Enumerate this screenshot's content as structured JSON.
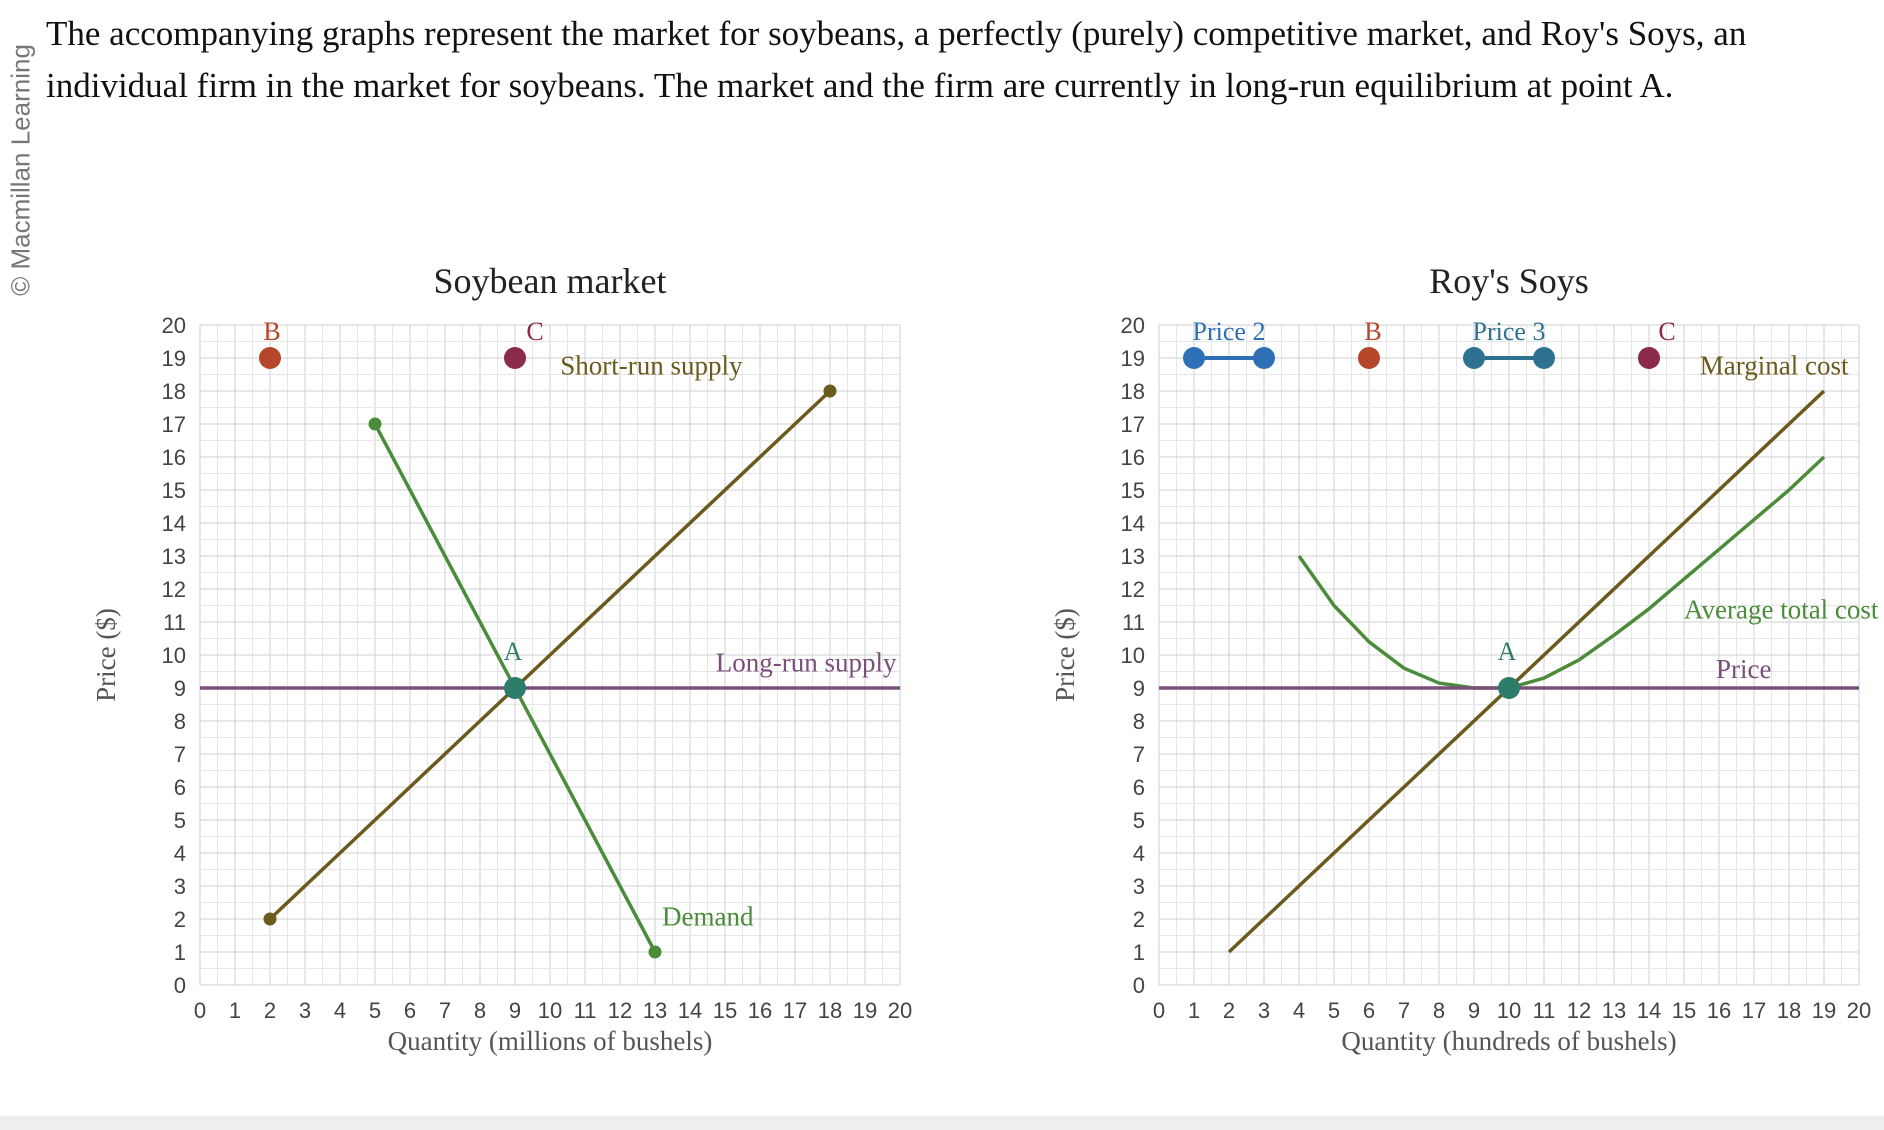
{
  "watermark": "© Macmillan Learning",
  "question": "The accompanying graphs represent the market for soybeans, a perfectly (purely) competitive market, and Roy's Soys, an individual firm in the market for soybeans. The market and the firm are currently in long-run equilibrium at point A.",
  "chart_data": [
    {
      "type": "line",
      "title": "Soybean market",
      "xlabel": "Quantity (millions of bushels)",
      "ylabel": "Price ($)",
      "xlim": [
        0,
        20
      ],
      "ylim": [
        0,
        20
      ],
      "grid": true,
      "series": [
        {
          "name": "Short-run supply",
          "color": "#6b5a1e",
          "points": [
            [
              2,
              2
            ],
            [
              18,
              18
            ]
          ],
          "end_markers": true
        },
        {
          "name": "Demand",
          "color": "#4a8c3a",
          "points": [
            [
              5,
              17
            ],
            [
              13,
              1
            ]
          ],
          "end_markers": true
        },
        {
          "name": "Long-run supply",
          "color": "#7a4f7a",
          "points": [
            [
              0,
              9
            ],
            [
              20,
              9
            ]
          ]
        }
      ],
      "points": [
        {
          "label": "A",
          "x": 9,
          "y": 9,
          "color": "#2e7d6b",
          "label_color": "#2e7d6b"
        },
        {
          "label": "B",
          "x": 2,
          "y": 19,
          "color": "#b5462a",
          "label_color": "#b5462a"
        },
        {
          "label": "C",
          "x": 9,
          "y": 19,
          "color": "#8b2a4a",
          "label_color": "#8b2a4a"
        }
      ]
    },
    {
      "type": "line",
      "title": "Roy's Soys",
      "xlabel": "Quantity (hundreds of bushels)",
      "ylabel": "Price ($)",
      "xlim": [
        0,
        20
      ],
      "ylim": [
        0,
        20
      ],
      "grid": true,
      "series": [
        {
          "name": "Marginal cost",
          "color": "#6b5a1e",
          "points": [
            [
              2,
              1
            ],
            [
              19,
              18
            ]
          ]
        },
        {
          "name": "Average total cost",
          "color": "#4a8c3a",
          "points": [
            [
              4,
              13
            ],
            [
              5,
              11.5
            ],
            [
              6,
              10.4
            ],
            [
              7,
              9.6
            ],
            [
              8,
              9.15
            ],
            [
              9,
              9.0
            ],
            [
              10,
              9.0
            ],
            [
              11,
              9.3
            ],
            [
              12,
              9.85
            ],
            [
              13,
              10.6
            ],
            [
              14,
              11.4
            ],
            [
              15,
              12.3
            ],
            [
              16,
              13.2
            ],
            [
              17,
              14.1
            ],
            [
              18,
              15.0
            ],
            [
              19,
              16
            ]
          ]
        },
        {
          "name": "Price",
          "color": "#7a4f7a",
          "points": [
            [
              0,
              9
            ],
            [
              20,
              9
            ]
          ]
        }
      ],
      "points": [
        {
          "label": "A",
          "x": 10,
          "y": 9,
          "color": "#2e7d6b",
          "label_color": "#2e7d6b"
        },
        {
          "label": "B",
          "x": 6,
          "y": 19,
          "color": "#b5462a",
          "label_color": "#b5462a"
        },
        {
          "label": "C",
          "x": 14,
          "y": 19,
          "color": "#8b2a4a",
          "label_color": "#8b2a4a"
        }
      ],
      "handles": [
        {
          "label": "Price 2",
          "from": [
            1,
            19
          ],
          "to": [
            3,
            19
          ],
          "color": "#2f6fb5"
        },
        {
          "label": "Price 3",
          "from": [
            9,
            19
          ],
          "to": [
            11,
            19
          ],
          "color": "#2e7190"
        }
      ]
    }
  ]
}
